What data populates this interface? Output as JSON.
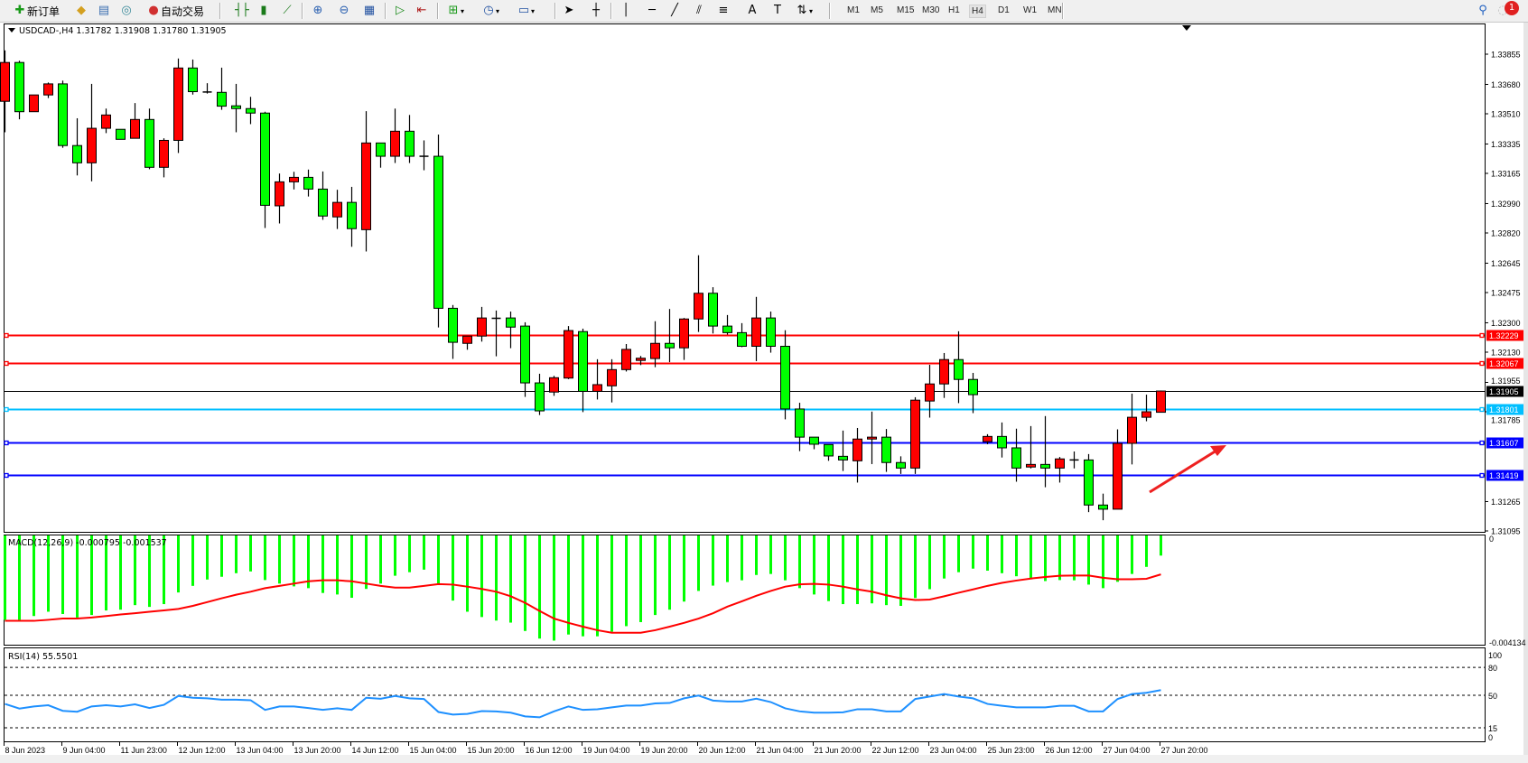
{
  "toolbar": {
    "new_order_label": "新订单",
    "auto_trading_label": "自动交易",
    "timeframes": [
      "M1",
      "M5",
      "M15",
      "M30",
      "H1",
      "H4",
      "D1",
      "W1",
      "MN"
    ],
    "active_timeframe": "H4",
    "notification_count": "1"
  },
  "chart": {
    "symbol_header": "USDCAD-,H4  1.31782 1.31908 1.31780 1.31905",
    "macd_header": "MACD(12,26,9) -0.000795 -0.001537",
    "rsi_header": "RSI(14) 55.5501"
  },
  "chart_data": [
    {
      "type": "candlestick",
      "symbol": "USDCAD-",
      "timeframe": "H4",
      "bull_color": "#ff0000",
      "bear_color": "#00ff00",
      "ylim": [
        1.31095,
        1.33855
      ],
      "y_ticks": [
        "1.33855",
        "1.33680",
        "1.33510",
        "1.33335",
        "1.33165",
        "1.32990",
        "1.32820",
        "1.32645",
        "1.32475",
        "1.32300",
        "1.32130",
        "1.31955",
        "1.31785",
        "1.31265",
        "1.31095"
      ],
      "x_tick_labels": [
        "8 Jun 2023",
        "9 Jun 04:00",
        "11 Jun 23:00",
        "12 Jun 12:00",
        "13 Jun 04:00",
        "13 Jun 20:00",
        "14 Jun 12:00",
        "15 Jun 04:00",
        "15 Jun 20:00",
        "16 Jun 12:00",
        "19 Jun 04:00",
        "19 Jun 20:00",
        "20 Jun 12:00",
        "21 Jun 04:00",
        "21 Jun 20:00",
        "22 Jun 12:00",
        "23 Jun 04:00",
        "25 Jun 23:00",
        "26 Jun 12:00",
        "27 Jun 04:00",
        "27 Jun 20:00"
      ],
      "horizontal_lines": [
        {
          "price": "1.32229",
          "color": "#ff0000"
        },
        {
          "price": "1.32067",
          "color": "#ff0000"
        },
        {
          "price": "1.31905",
          "color": "#000000"
        },
        {
          "price": "1.31801",
          "color": "#00bfff"
        },
        {
          "price": "1.31607",
          "color": "#0000ff"
        },
        {
          "price": "1.31419",
          "color": "#0000ff"
        }
      ],
      "annotation_arrow_color": "#ee2020",
      "candles": [
        {
          "o": 1.33582,
          "h": 1.33877,
          "l": 1.33403,
          "c": 1.33807
        },
        {
          "o": 1.33807,
          "h": 1.33817,
          "l": 1.33478,
          "c": 1.33522
        },
        {
          "o": 1.33522,
          "h": 1.33619,
          "l": 1.33522,
          "c": 1.33619
        },
        {
          "o": 1.33619,
          "h": 1.33691,
          "l": 1.33601,
          "c": 1.33683
        },
        {
          "o": 1.33683,
          "h": 1.33702,
          "l": 1.33313,
          "c": 1.33326
        },
        {
          "o": 1.33326,
          "h": 1.33484,
          "l": 1.33153,
          "c": 1.33226
        },
        {
          "o": 1.33226,
          "h": 1.33683,
          "l": 1.33119,
          "c": 1.33426
        },
        {
          "o": 1.33426,
          "h": 1.3354,
          "l": 1.33398,
          "c": 1.33503
        },
        {
          "o": 1.3342,
          "h": 1.3342,
          "l": 1.33362,
          "c": 1.33362
        },
        {
          "o": 1.33368,
          "h": 1.33572,
          "l": 1.33368,
          "c": 1.33477
        },
        {
          "o": 1.33477,
          "h": 1.3354,
          "l": 1.33189,
          "c": 1.332
        },
        {
          "o": 1.332,
          "h": 1.33368,
          "l": 1.33142,
          "c": 1.33356
        },
        {
          "o": 1.33356,
          "h": 1.3383,
          "l": 1.33283,
          "c": 1.33775
        },
        {
          "o": 1.33775,
          "h": 1.33824,
          "l": 1.33621,
          "c": 1.33638
        },
        {
          "o": 1.33636,
          "h": 1.33687,
          "l": 1.33627,
          "c": 1.33636
        },
        {
          "o": 1.33634,
          "h": 1.33777,
          "l": 1.33533,
          "c": 1.33554
        },
        {
          "o": 1.33556,
          "h": 1.33683,
          "l": 1.33403,
          "c": 1.3354
        },
        {
          "o": 1.3354,
          "h": 1.33608,
          "l": 1.3345,
          "c": 1.33514
        },
        {
          "o": 1.33514,
          "h": 1.33522,
          "l": 1.32849,
          "c": 1.3298
        },
        {
          "o": 1.32977,
          "h": 1.33164,
          "l": 1.32875,
          "c": 1.33116
        },
        {
          "o": 1.33116,
          "h": 1.33174,
          "l": 1.33072,
          "c": 1.33142
        },
        {
          "o": 1.33142,
          "h": 1.33187,
          "l": 1.33031,
          "c": 1.33074
        },
        {
          "o": 1.33074,
          "h": 1.33176,
          "l": 1.32896,
          "c": 1.32918
        },
        {
          "o": 1.32913,
          "h": 1.3307,
          "l": 1.32843,
          "c": 1.32997
        },
        {
          "o": 1.32997,
          "h": 1.33087,
          "l": 1.3274,
          "c": 1.32845
        },
        {
          "o": 1.32839,
          "h": 1.33525,
          "l": 1.32713,
          "c": 1.33341
        },
        {
          "o": 1.33341,
          "h": 1.33341,
          "l": 1.33198,
          "c": 1.33264
        },
        {
          "o": 1.33264,
          "h": 1.3354,
          "l": 1.33225,
          "c": 1.33409
        },
        {
          "o": 1.33409,
          "h": 1.33503,
          "l": 1.33225,
          "c": 1.33264
        },
        {
          "o": 1.33264,
          "h": 1.33356,
          "l": 1.33183,
          "c": 1.33264
        },
        {
          "o": 1.33264,
          "h": 1.3339,
          "l": 1.32273,
          "c": 1.32384
        },
        {
          "o": 1.32384,
          "h": 1.32403,
          "l": 1.32091,
          "c": 1.32187
        },
        {
          "o": 1.32181,
          "h": 1.32223,
          "l": 1.32144,
          "c": 1.32223
        },
        {
          "o": 1.32223,
          "h": 1.32392,
          "l": 1.32191,
          "c": 1.32328
        },
        {
          "o": 1.32326,
          "h": 1.32371,
          "l": 1.32106,
          "c": 1.32326
        },
        {
          "o": 1.32328,
          "h": 1.32365,
          "l": 1.32153,
          "c": 1.32275
        },
        {
          "o": 1.32281,
          "h": 1.32303,
          "l": 1.31871,
          "c": 1.31952
        },
        {
          "o": 1.31952,
          "h": 1.32005,
          "l": 1.31766,
          "c": 1.3179
        },
        {
          "o": 1.31899,
          "h": 1.31993,
          "l": 1.31877,
          "c": 1.31982
        },
        {
          "o": 1.3198,
          "h": 1.32281,
          "l": 1.31974,
          "c": 1.32255
        },
        {
          "o": 1.32249,
          "h": 1.32266,
          "l": 1.31783,
          "c": 1.31903
        },
        {
          "o": 1.31903,
          "h": 1.32089,
          "l": 1.31856,
          "c": 1.31942
        },
        {
          "o": 1.31935,
          "h": 1.32089,
          "l": 1.31839,
          "c": 1.32029
        },
        {
          "o": 1.32029,
          "h": 1.32177,
          "l": 1.32018,
          "c": 1.32146
        },
        {
          "o": 1.32082,
          "h": 1.32108,
          "l": 1.32055,
          "c": 1.32095
        },
        {
          "o": 1.32093,
          "h": 1.32309,
          "l": 1.32043,
          "c": 1.32181
        },
        {
          "o": 1.32181,
          "h": 1.3238,
          "l": 1.32072,
          "c": 1.32155
        },
        {
          "o": 1.32155,
          "h": 1.32328,
          "l": 1.32085,
          "c": 1.32322
        },
        {
          "o": 1.32322,
          "h": 1.32691,
          "l": 1.32247,
          "c": 1.32471
        },
        {
          "o": 1.32471,
          "h": 1.32506,
          "l": 1.32238,
          "c": 1.32281
        },
        {
          "o": 1.32281,
          "h": 1.32345,
          "l": 1.32232,
          "c": 1.32243
        },
        {
          "o": 1.32243,
          "h": 1.32298,
          "l": 1.32159,
          "c": 1.32164
        },
        {
          "o": 1.32164,
          "h": 1.3245,
          "l": 1.32078,
          "c": 1.32328
        },
        {
          "o": 1.32328,
          "h": 1.32365,
          "l": 1.32127,
          "c": 1.32164
        },
        {
          "o": 1.32164,
          "h": 1.32257,
          "l": 1.31741,
          "c": 1.31801
        },
        {
          "o": 1.31801,
          "h": 1.31837,
          "l": 1.31557,
          "c": 1.31638
        },
        {
          "o": 1.31638,
          "h": 1.31638,
          "l": 1.31568,
          "c": 1.31597
        },
        {
          "o": 1.31595,
          "h": 1.31595,
          "l": 1.31501,
          "c": 1.31529
        },
        {
          "o": 1.31527,
          "h": 1.31676,
          "l": 1.31442,
          "c": 1.31506
        },
        {
          "o": 1.31501,
          "h": 1.31691,
          "l": 1.31375,
          "c": 1.31627
        },
        {
          "o": 1.31627,
          "h": 1.31786,
          "l": 1.31482,
          "c": 1.31638
        },
        {
          "o": 1.31638,
          "h": 1.31685,
          "l": 1.31437,
          "c": 1.31491
        },
        {
          "o": 1.31491,
          "h": 1.31527,
          "l": 1.31425,
          "c": 1.31459
        },
        {
          "o": 1.31459,
          "h": 1.31869,
          "l": 1.31425,
          "c": 1.31852
        },
        {
          "o": 1.31847,
          "h": 1.32057,
          "l": 1.31751,
          "c": 1.31946
        },
        {
          "o": 1.31946,
          "h": 1.32125,
          "l": 1.31865,
          "c": 1.32087
        },
        {
          "o": 1.32087,
          "h": 1.32251,
          "l": 1.31835,
          "c": 1.31972
        },
        {
          "o": 1.31972,
          "h": 1.3201,
          "l": 1.31777,
          "c": 1.31884
        },
        {
          "o": 1.31612,
          "h": 1.31655,
          "l": 1.31597,
          "c": 1.31642
        },
        {
          "o": 1.31642,
          "h": 1.31723,
          "l": 1.3152,
          "c": 1.31576
        },
        {
          "o": 1.31576,
          "h": 1.31687,
          "l": 1.3138,
          "c": 1.31459
        },
        {
          "o": 1.31465,
          "h": 1.31702,
          "l": 1.31457,
          "c": 1.3148
        },
        {
          "o": 1.3148,
          "h": 1.3176,
          "l": 1.31348,
          "c": 1.31459
        },
        {
          "o": 1.31459,
          "h": 1.31523,
          "l": 1.31375,
          "c": 1.31512
        },
        {
          "o": 1.31506,
          "h": 1.31555,
          "l": 1.31457,
          "c": 1.31506
        },
        {
          "o": 1.31506,
          "h": 1.3154,
          "l": 1.31204,
          "c": 1.31245
        },
        {
          "o": 1.31245,
          "h": 1.31311,
          "l": 1.31157,
          "c": 1.31221
        },
        {
          "o": 1.31221,
          "h": 1.31683,
          "l": 1.31221,
          "c": 1.31602
        },
        {
          "o": 1.31602,
          "h": 1.3189,
          "l": 1.3148,
          "c": 1.31753
        },
        {
          "o": 1.31753,
          "h": 1.31884,
          "l": 1.3173,
          "c": 1.31785
        },
        {
          "o": 1.31782,
          "h": 1.31908,
          "l": 1.3178,
          "c": 1.31905
        }
      ]
    },
    {
      "type": "bar+line",
      "name": "MACD(12,26,9)",
      "ylim": [
        -0.004134,
        0
      ],
      "y_ticks": [
        "0",
        "-0.004134"
      ],
      "histogram_color": "#00ff00",
      "signal_color": "#ff0000",
      "histogram": [
        -0.00333,
        -0.00333,
        -0.00318,
        -0.00301,
        -0.0031,
        -0.00324,
        -0.00314,
        -0.00296,
        -0.00293,
        -0.00275,
        -0.00282,
        -0.00271,
        -0.00225,
        -0.00199,
        -0.00174,
        -0.00163,
        -0.00149,
        -0.00142,
        -0.00176,
        -0.0019,
        -0.00201,
        -0.00208,
        -0.00227,
        -0.00233,
        -0.00246,
        -0.00211,
        -0.0019,
        -0.00159,
        -0.00145,
        -0.00135,
        -0.0019,
        -0.00257,
        -0.00301,
        -0.00322,
        -0.00336,
        -0.00344,
        -0.00377,
        -0.00407,
        -0.00415,
        -0.00391,
        -0.00398,
        -0.00398,
        -0.0038,
        -0.00358,
        -0.00342,
        -0.00314,
        -0.00293,
        -0.00261,
        -0.00219,
        -0.00198,
        -0.00184,
        -0.00177,
        -0.00156,
        -0.00152,
        -0.00177,
        -0.00208,
        -0.00233,
        -0.00259,
        -0.00271,
        -0.00271,
        -0.00268,
        -0.00275,
        -0.00278,
        -0.00247,
        -0.00212,
        -0.0017,
        -0.00145,
        -0.00131,
        -0.00139,
        -0.00149,
        -0.00161,
        -0.00173,
        -0.0018,
        -0.00176,
        -0.00177,
        -0.00194,
        -0.00208,
        -0.00183,
        -0.00152,
        -0.00124,
        -0.000795
      ],
      "signal": [
        -0.00337,
        -0.00337,
        -0.00337,
        -0.00333,
        -0.00328,
        -0.00328,
        -0.00324,
        -0.00318,
        -0.00312,
        -0.00307,
        -0.00301,
        -0.00296,
        -0.0029,
        -0.00278,
        -0.00263,
        -0.00248,
        -0.00234,
        -0.00222,
        -0.00208,
        -0.00199,
        -0.0019,
        -0.00181,
        -0.00177,
        -0.00177,
        -0.00181,
        -0.0019,
        -0.00199,
        -0.00206,
        -0.00206,
        -0.00199,
        -0.00192,
        -0.00194,
        -0.00202,
        -0.00211,
        -0.00222,
        -0.0024,
        -0.00266,
        -0.00298,
        -0.00328,
        -0.00345,
        -0.0036,
        -0.00374,
        -0.00384,
        -0.00384,
        -0.00384,
        -0.00374,
        -0.0036,
        -0.00345,
        -0.00328,
        -0.00307,
        -0.00281,
        -0.0026,
        -0.00238,
        -0.00219,
        -0.00202,
        -0.00193,
        -0.00191,
        -0.00194,
        -0.00202,
        -0.00213,
        -0.00222,
        -0.00236,
        -0.00248,
        -0.00255,
        -0.00253,
        -0.0024,
        -0.00226,
        -0.00213,
        -0.00199,
        -0.00187,
        -0.00178,
        -0.0017,
        -0.00164,
        -0.00159,
        -0.00158,
        -0.00158,
        -0.00167,
        -0.00173,
        -0.00173,
        -0.00171,
        -0.001537
      ]
    },
    {
      "type": "line",
      "name": "RSI(14)",
      "ylim": [
        0,
        100
      ],
      "y_ticks": [
        "100",
        "80",
        "50",
        "15",
        "0"
      ],
      "levels": [
        80,
        50,
        15
      ],
      "line_color": "#1e90ff",
      "values": [
        40.7,
        35.7,
        38,
        39.3,
        33.3,
        32.3,
        38,
        39.3,
        38,
        40.3,
        36.3,
        39.7,
        49.3,
        47.3,
        46.7,
        45.3,
        45.3,
        44.7,
        34.3,
        38,
        38,
        36.3,
        34.3,
        36,
        34.3,
        47.3,
        46.3,
        49.3,
        46.7,
        46,
        32,
        29.3,
        30,
        33,
        32.7,
        31.3,
        27.3,
        26.3,
        32.7,
        38,
        34.3,
        35,
        37,
        39,
        39,
        41.3,
        41.7,
        46.7,
        49.7,
        44.3,
        43.3,
        43.3,
        46.3,
        42.7,
        36,
        32.7,
        31.3,
        31.3,
        31.7,
        35,
        35,
        32.7,
        32.7,
        46,
        48.7,
        51.3,
        48.7,
        46.7,
        40.7,
        38.7,
        37,
        37,
        37,
        38.7,
        38.7,
        32.7,
        32.7,
        46,
        51.3,
        52.7,
        55.55
      ]
    }
  ]
}
